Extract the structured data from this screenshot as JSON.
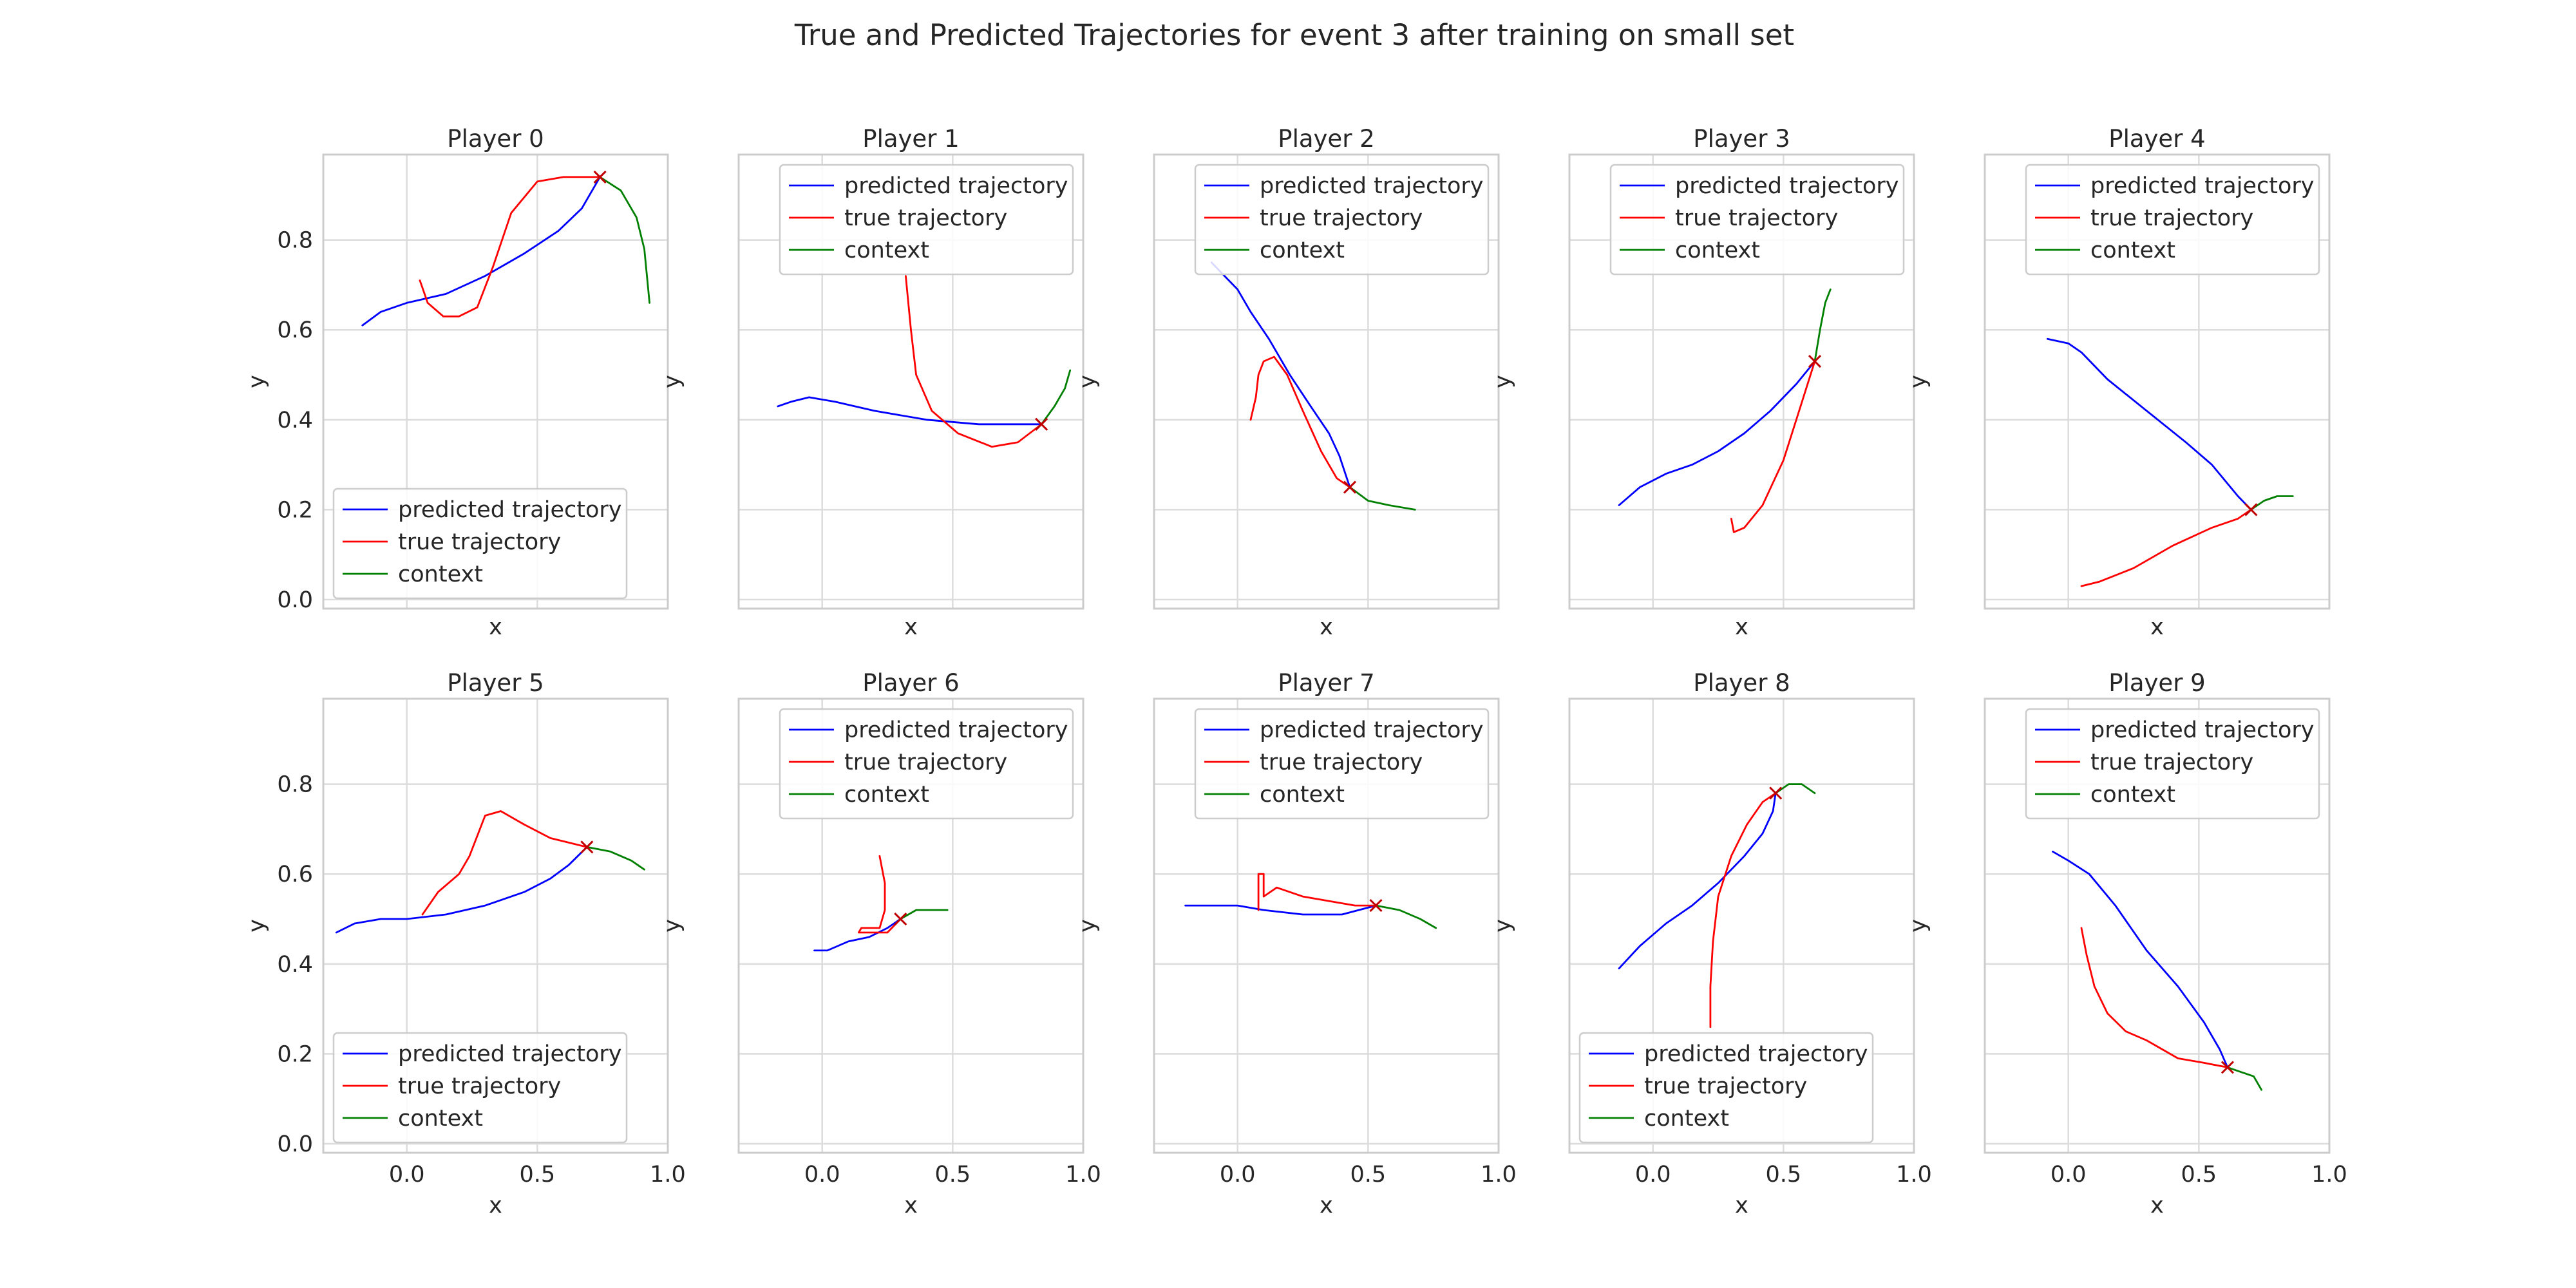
{
  "figure": {
    "title": "True and Predicted Trajectories for event 3 after training on small set"
  },
  "chart_data": {
    "type": "line",
    "xlabel": "x",
    "ylabel": "y",
    "xlim": [
      -0.32,
      1.0
    ],
    "ylim": [
      -0.02,
      0.99
    ],
    "xticks": [
      0.0,
      0.5,
      1.0
    ],
    "xtick_labels": [
      "0.0",
      "0.5",
      "1.0"
    ],
    "yticks": [
      0.0,
      0.2,
      0.4,
      0.6,
      0.8
    ],
    "ytick_labels": [
      "0.0",
      "0.2",
      "0.4",
      "0.6",
      "0.8"
    ],
    "sharex": true,
    "sharey": true,
    "grid": true,
    "legend": [
      "predicted trajectory",
      "true trajectory",
      "context"
    ],
    "colors": {
      "predicted": "#0000ff",
      "true": "#ff0000",
      "context": "#008000",
      "marker": "#c00000"
    },
    "panels": [
      {
        "title": "Player 0",
        "legend_loc": "lower left",
        "predicted": [
          [
            -0.17,
            0.61
          ],
          [
            -0.1,
            0.64
          ],
          [
            0.0,
            0.66
          ],
          [
            0.15,
            0.68
          ],
          [
            0.3,
            0.72
          ],
          [
            0.45,
            0.77
          ],
          [
            0.58,
            0.82
          ],
          [
            0.67,
            0.87
          ],
          [
            0.74,
            0.94
          ]
        ],
        "true": [
          [
            0.05,
            0.71
          ],
          [
            0.08,
            0.66
          ],
          [
            0.14,
            0.63
          ],
          [
            0.2,
            0.63
          ],
          [
            0.27,
            0.65
          ],
          [
            0.33,
            0.74
          ],
          [
            0.4,
            0.86
          ],
          [
            0.5,
            0.93
          ],
          [
            0.6,
            0.94
          ],
          [
            0.74,
            0.94
          ]
        ],
        "context": [
          [
            0.74,
            0.94
          ],
          [
            0.82,
            0.91
          ],
          [
            0.88,
            0.85
          ],
          [
            0.91,
            0.78
          ],
          [
            0.93,
            0.66
          ]
        ],
        "marker": [
          0.74,
          0.94
        ]
      },
      {
        "title": "Player 1",
        "legend_loc": "upper right",
        "predicted": [
          [
            -0.17,
            0.43
          ],
          [
            -0.12,
            0.44
          ],
          [
            -0.05,
            0.45
          ],
          [
            0.05,
            0.44
          ],
          [
            0.2,
            0.42
          ],
          [
            0.4,
            0.4
          ],
          [
            0.6,
            0.39
          ],
          [
            0.75,
            0.39
          ],
          [
            0.84,
            0.39
          ]
        ],
        "true": [
          [
            0.32,
            0.72
          ],
          [
            0.34,
            0.6
          ],
          [
            0.36,
            0.5
          ],
          [
            0.42,
            0.42
          ],
          [
            0.52,
            0.37
          ],
          [
            0.65,
            0.34
          ],
          [
            0.75,
            0.35
          ],
          [
            0.84,
            0.39
          ]
        ],
        "context": [
          [
            0.84,
            0.39
          ],
          [
            0.89,
            0.43
          ],
          [
            0.93,
            0.47
          ],
          [
            0.95,
            0.51
          ]
        ],
        "marker": [
          0.84,
          0.39
        ]
      },
      {
        "title": "Player 2",
        "legend_loc": "upper right",
        "predicted": [
          [
            -0.1,
            0.75
          ],
          [
            -0.05,
            0.72
          ],
          [
            0.0,
            0.69
          ],
          [
            0.05,
            0.64
          ],
          [
            0.12,
            0.58
          ],
          [
            0.2,
            0.5
          ],
          [
            0.28,
            0.43
          ],
          [
            0.35,
            0.37
          ],
          [
            0.39,
            0.32
          ],
          [
            0.43,
            0.25
          ]
        ],
        "true": [
          [
            0.05,
            0.4
          ],
          [
            0.07,
            0.45
          ],
          [
            0.08,
            0.5
          ],
          [
            0.1,
            0.53
          ],
          [
            0.14,
            0.54
          ],
          [
            0.19,
            0.5
          ],
          [
            0.25,
            0.42
          ],
          [
            0.32,
            0.33
          ],
          [
            0.38,
            0.27
          ],
          [
            0.43,
            0.25
          ]
        ],
        "context": [
          [
            0.43,
            0.25
          ],
          [
            0.5,
            0.22
          ],
          [
            0.58,
            0.21
          ],
          [
            0.68,
            0.2
          ]
        ],
        "marker": [
          0.43,
          0.25
        ]
      },
      {
        "title": "Player 3",
        "legend_loc": "upper right",
        "predicted": [
          [
            -0.13,
            0.21
          ],
          [
            -0.05,
            0.25
          ],
          [
            0.05,
            0.28
          ],
          [
            0.15,
            0.3
          ],
          [
            0.25,
            0.33
          ],
          [
            0.35,
            0.37
          ],
          [
            0.45,
            0.42
          ],
          [
            0.55,
            0.48
          ],
          [
            0.62,
            0.53
          ]
        ],
        "true": [
          [
            0.3,
            0.18
          ],
          [
            0.31,
            0.15
          ],
          [
            0.35,
            0.16
          ],
          [
            0.42,
            0.21
          ],
          [
            0.5,
            0.31
          ],
          [
            0.56,
            0.42
          ],
          [
            0.62,
            0.53
          ]
        ],
        "context": [
          [
            0.62,
            0.53
          ],
          [
            0.64,
            0.6
          ],
          [
            0.66,
            0.66
          ],
          [
            0.68,
            0.69
          ]
        ],
        "marker": [
          0.62,
          0.53
        ]
      },
      {
        "title": "Player 4",
        "legend_loc": "upper right",
        "predicted": [
          [
            -0.08,
            0.58
          ],
          [
            0.0,
            0.57
          ],
          [
            0.05,
            0.55
          ],
          [
            0.15,
            0.49
          ],
          [
            0.3,
            0.42
          ],
          [
            0.45,
            0.35
          ],
          [
            0.55,
            0.3
          ],
          [
            0.65,
            0.23
          ],
          [
            0.7,
            0.2
          ]
        ],
        "true": [
          [
            0.05,
            0.03
          ],
          [
            0.12,
            0.04
          ],
          [
            0.25,
            0.07
          ],
          [
            0.4,
            0.12
          ],
          [
            0.55,
            0.16
          ],
          [
            0.65,
            0.18
          ],
          [
            0.7,
            0.2
          ]
        ],
        "context": [
          [
            0.7,
            0.2
          ],
          [
            0.75,
            0.22
          ],
          [
            0.8,
            0.23
          ],
          [
            0.86,
            0.23
          ]
        ],
        "marker": [
          0.7,
          0.2
        ]
      },
      {
        "title": "Player 5",
        "legend_loc": "lower left",
        "predicted": [
          [
            -0.27,
            0.47
          ],
          [
            -0.2,
            0.49
          ],
          [
            -0.1,
            0.5
          ],
          [
            0.0,
            0.5
          ],
          [
            0.15,
            0.51
          ],
          [
            0.3,
            0.53
          ],
          [
            0.45,
            0.56
          ],
          [
            0.55,
            0.59
          ],
          [
            0.62,
            0.62
          ],
          [
            0.69,
            0.66
          ]
        ],
        "true": [
          [
            0.06,
            0.51
          ],
          [
            0.12,
            0.56
          ],
          [
            0.2,
            0.6
          ],
          [
            0.24,
            0.64
          ],
          [
            0.3,
            0.73
          ],
          [
            0.36,
            0.74
          ],
          [
            0.45,
            0.71
          ],
          [
            0.55,
            0.68
          ],
          [
            0.69,
            0.66
          ]
        ],
        "context": [
          [
            0.69,
            0.66
          ],
          [
            0.78,
            0.65
          ],
          [
            0.86,
            0.63
          ],
          [
            0.91,
            0.61
          ]
        ],
        "marker": [
          0.69,
          0.66
        ]
      },
      {
        "title": "Player 6",
        "legend_loc": "upper right",
        "predicted": [
          [
            -0.03,
            0.43
          ],
          [
            0.02,
            0.43
          ],
          [
            0.1,
            0.45
          ],
          [
            0.18,
            0.46
          ],
          [
            0.25,
            0.48
          ],
          [
            0.3,
            0.5
          ]
        ],
        "true": [
          [
            0.22,
            0.64
          ],
          [
            0.24,
            0.58
          ],
          [
            0.24,
            0.52
          ],
          [
            0.22,
            0.48
          ],
          [
            0.15,
            0.48
          ],
          [
            0.14,
            0.47
          ],
          [
            0.25,
            0.47
          ],
          [
            0.3,
            0.5
          ]
        ],
        "context": [
          [
            0.3,
            0.5
          ],
          [
            0.36,
            0.52
          ],
          [
            0.42,
            0.52
          ],
          [
            0.48,
            0.52
          ]
        ],
        "marker": [
          0.3,
          0.5
        ]
      },
      {
        "title": "Player 7",
        "legend_loc": "upper right",
        "predicted": [
          [
            -0.2,
            0.53
          ],
          [
            -0.1,
            0.53
          ],
          [
            0.0,
            0.53
          ],
          [
            0.1,
            0.52
          ],
          [
            0.25,
            0.51
          ],
          [
            0.4,
            0.51
          ],
          [
            0.53,
            0.53
          ]
        ],
        "true": [
          [
            0.08,
            0.52
          ],
          [
            0.08,
            0.6
          ],
          [
            0.1,
            0.6
          ],
          [
            0.1,
            0.55
          ],
          [
            0.15,
            0.57
          ],
          [
            0.25,
            0.55
          ],
          [
            0.35,
            0.54
          ],
          [
            0.45,
            0.53
          ],
          [
            0.53,
            0.53
          ]
        ],
        "context": [
          [
            0.53,
            0.53
          ],
          [
            0.62,
            0.52
          ],
          [
            0.7,
            0.5
          ],
          [
            0.76,
            0.48
          ]
        ],
        "marker": [
          0.53,
          0.53
        ]
      },
      {
        "title": "Player 8",
        "legend_loc": "lower left",
        "predicted": [
          [
            -0.13,
            0.39
          ],
          [
            -0.05,
            0.44
          ],
          [
            0.05,
            0.49
          ],
          [
            0.15,
            0.53
          ],
          [
            0.25,
            0.58
          ],
          [
            0.35,
            0.64
          ],
          [
            0.42,
            0.69
          ],
          [
            0.46,
            0.74
          ],
          [
            0.47,
            0.78
          ]
        ],
        "true": [
          [
            0.22,
            0.26
          ],
          [
            0.22,
            0.35
          ],
          [
            0.23,
            0.45
          ],
          [
            0.25,
            0.55
          ],
          [
            0.3,
            0.64
          ],
          [
            0.36,
            0.71
          ],
          [
            0.42,
            0.76
          ],
          [
            0.47,
            0.78
          ]
        ],
        "context": [
          [
            0.47,
            0.78
          ],
          [
            0.52,
            0.8
          ],
          [
            0.57,
            0.8
          ],
          [
            0.62,
            0.78
          ]
        ],
        "marker": [
          0.47,
          0.78
        ]
      },
      {
        "title": "Player 9",
        "legend_loc": "upper right",
        "predicted": [
          [
            -0.06,
            0.65
          ],
          [
            0.0,
            0.63
          ],
          [
            0.08,
            0.6
          ],
          [
            0.18,
            0.53
          ],
          [
            0.3,
            0.43
          ],
          [
            0.42,
            0.35
          ],
          [
            0.52,
            0.27
          ],
          [
            0.58,
            0.21
          ],
          [
            0.61,
            0.17
          ]
        ],
        "true": [
          [
            0.05,
            0.48
          ],
          [
            0.07,
            0.42
          ],
          [
            0.1,
            0.35
          ],
          [
            0.15,
            0.29
          ],
          [
            0.22,
            0.25
          ],
          [
            0.3,
            0.23
          ],
          [
            0.42,
            0.19
          ],
          [
            0.52,
            0.18
          ],
          [
            0.61,
            0.17
          ]
        ],
        "context": [
          [
            0.61,
            0.17
          ],
          [
            0.66,
            0.16
          ],
          [
            0.71,
            0.15
          ],
          [
            0.74,
            0.12
          ]
        ],
        "marker": [
          0.61,
          0.17
        ]
      }
    ]
  }
}
